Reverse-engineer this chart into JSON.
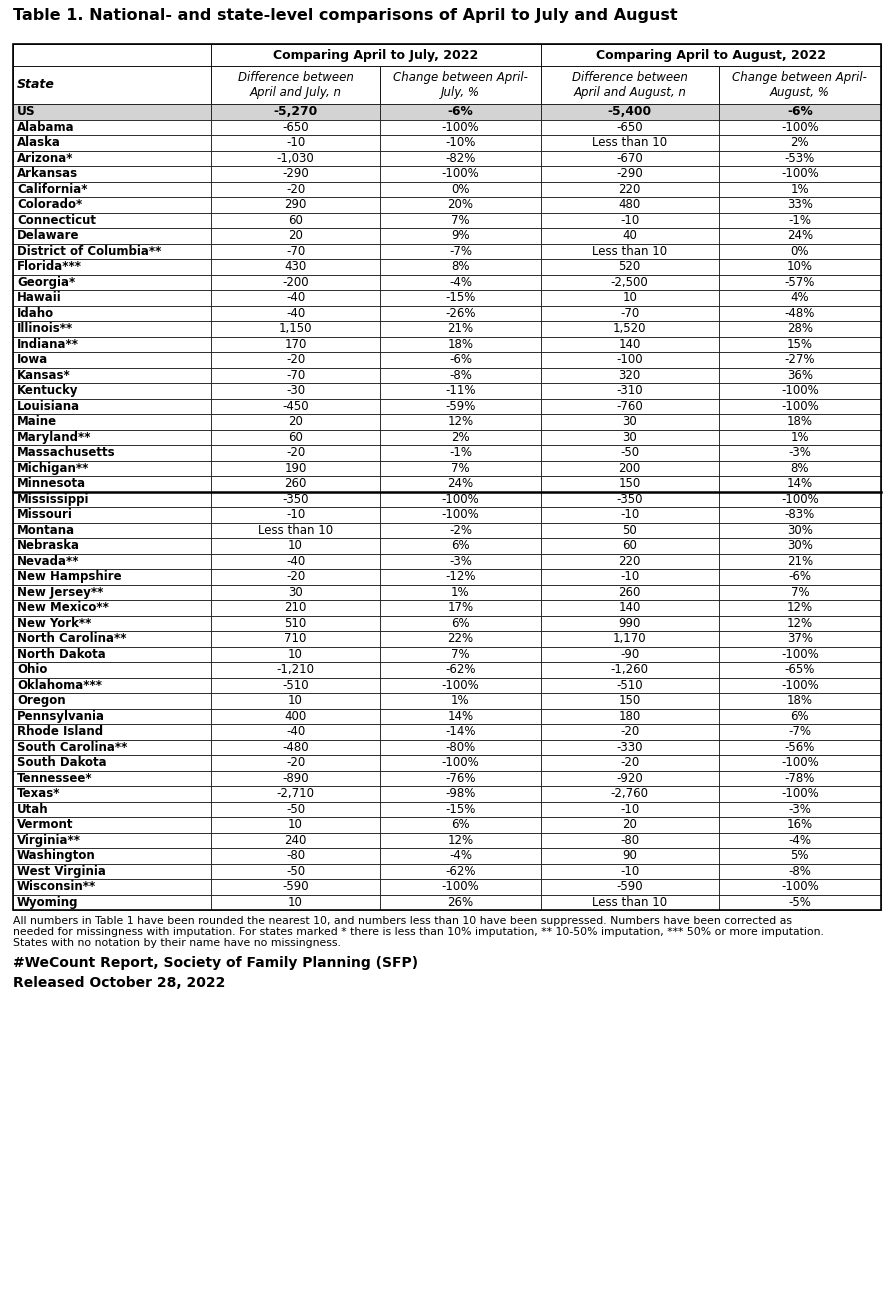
{
  "title": "Table 1. National- and state-level comparisons of April to July and August",
  "header1": "Comparing April to July, 2022",
  "header2": "Comparing April to August, 2022",
  "col_headers": [
    "State",
    "Difference between\nApril and July, n",
    "Change between April-\nJuly, %",
    "Difference between\nApril and August, n",
    "Change between April-\nAugust, %"
  ],
  "rows": [
    [
      "US",
      "-5,270",
      "-6%",
      "-5,400",
      "-6%",
      "us"
    ],
    [
      "Alabama",
      "-650",
      "-100%",
      "-650",
      "-100%",
      "normal"
    ],
    [
      "Alaska",
      "-10",
      "-10%",
      "Less than 10",
      "2%",
      "normal"
    ],
    [
      "Arizona*",
      "-1,030",
      "-82%",
      "-670",
      "-53%",
      "normal"
    ],
    [
      "Arkansas",
      "-290",
      "-100%",
      "-290",
      "-100%",
      "normal"
    ],
    [
      "California*",
      "-20",
      "0%",
      "220",
      "1%",
      "normal"
    ],
    [
      "Colorado*",
      "290",
      "20%",
      "480",
      "33%",
      "normal"
    ],
    [
      "Connecticut",
      "60",
      "7%",
      "-10",
      "-1%",
      "normal"
    ],
    [
      "Delaware",
      "20",
      "9%",
      "40",
      "24%",
      "normal"
    ],
    [
      "District of Columbia**",
      "-70",
      "-7%",
      "Less than 10",
      "0%",
      "normal"
    ],
    [
      "Florida***",
      "430",
      "8%",
      "520",
      "10%",
      "normal"
    ],
    [
      "Georgia*",
      "-200",
      "-4%",
      "-2,500",
      "-57%",
      "normal"
    ],
    [
      "Hawaii",
      "-40",
      "-15%",
      "10",
      "4%",
      "normal"
    ],
    [
      "Idaho",
      "-40",
      "-26%",
      "-70",
      "-48%",
      "normal"
    ],
    [
      "Illinois**",
      "1,150",
      "21%",
      "1,520",
      "28%",
      "normal"
    ],
    [
      "Indiana**",
      "170",
      "18%",
      "140",
      "15%",
      "normal"
    ],
    [
      "Iowa",
      "-20",
      "-6%",
      "-100",
      "-27%",
      "normal"
    ],
    [
      "Kansas*",
      "-70",
      "-8%",
      "320",
      "36%",
      "normal"
    ],
    [
      "Kentucky",
      "-30",
      "-11%",
      "-310",
      "-100%",
      "normal"
    ],
    [
      "Louisiana",
      "-450",
      "-59%",
      "-760",
      "-100%",
      "normal"
    ],
    [
      "Maine",
      "20",
      "12%",
      "30",
      "18%",
      "normal"
    ],
    [
      "Maryland**",
      "60",
      "2%",
      "30",
      "1%",
      "normal"
    ],
    [
      "Massachusetts",
      "-20",
      "-1%",
      "-50",
      "-3%",
      "normal"
    ],
    [
      "Michigan**",
      "190",
      "7%",
      "200",
      "8%",
      "normal"
    ],
    [
      "Minnesota",
      "260",
      "24%",
      "150",
      "14%",
      "normal"
    ],
    [
      "Mississippi",
      "-350",
      "-100%",
      "-350",
      "-100%",
      "gap"
    ],
    [
      "Missouri",
      "-10",
      "-100%",
      "-10",
      "-83%",
      "normal"
    ],
    [
      "Montana",
      "Less than 10",
      "-2%",
      "50",
      "30%",
      "normal"
    ],
    [
      "Nebraska",
      "10",
      "6%",
      "60",
      "30%",
      "normal"
    ],
    [
      "Nevada**",
      "-40",
      "-3%",
      "220",
      "21%",
      "normal"
    ],
    [
      "New Hampshire",
      "-20",
      "-12%",
      "-10",
      "-6%",
      "normal"
    ],
    [
      "New Jersey**",
      "30",
      "1%",
      "260",
      "7%",
      "normal"
    ],
    [
      "New Mexico**",
      "210",
      "17%",
      "140",
      "12%",
      "normal"
    ],
    [
      "New York**",
      "510",
      "6%",
      "990",
      "12%",
      "normal"
    ],
    [
      "North Carolina**",
      "710",
      "22%",
      "1,170",
      "37%",
      "normal"
    ],
    [
      "North Dakota",
      "10",
      "7%",
      "-90",
      "-100%",
      "normal"
    ],
    [
      "Ohio",
      "-1,210",
      "-62%",
      "-1,260",
      "-65%",
      "normal"
    ],
    [
      "Oklahoma***",
      "-510",
      "-100%",
      "-510",
      "-100%",
      "normal"
    ],
    [
      "Oregon",
      "10",
      "1%",
      "150",
      "18%",
      "normal"
    ],
    [
      "Pennsylvania",
      "400",
      "14%",
      "180",
      "6%",
      "normal"
    ],
    [
      "Rhode Island",
      "-40",
      "-14%",
      "-20",
      "-7%",
      "normal"
    ],
    [
      "South Carolina**",
      "-480",
      "-80%",
      "-330",
      "-56%",
      "normal"
    ],
    [
      "South Dakota",
      "-20",
      "-100%",
      "-20",
      "-100%",
      "normal"
    ],
    [
      "Tennessee*",
      "-890",
      "-76%",
      "-920",
      "-78%",
      "normal"
    ],
    [
      "Texas*",
      "-2,710",
      "-98%",
      "-2,760",
      "-100%",
      "normal"
    ],
    [
      "Utah",
      "-50",
      "-15%",
      "-10",
      "-3%",
      "normal"
    ],
    [
      "Vermont",
      "10",
      "6%",
      "20",
      "16%",
      "normal"
    ],
    [
      "Virginia**",
      "240",
      "12%",
      "-80",
      "-4%",
      "normal"
    ],
    [
      "Washington",
      "-80",
      "-4%",
      "90",
      "5%",
      "normal"
    ],
    [
      "West Virginia",
      "-50",
      "-62%",
      "-10",
      "-8%",
      "normal"
    ],
    [
      "Wisconsin**",
      "-590",
      "-100%",
      "-590",
      "-100%",
      "normal"
    ],
    [
      "Wyoming",
      "10",
      "26%",
      "Less than 10",
      "-5%",
      "normal"
    ]
  ],
  "footnote1": "All numbers in Table 1 have been rounded the nearest 10, and numbers less than 10 have been suppressed. Numbers have been corrected as",
  "footnote2": "needed for missingness with imputation. For states marked * there is less than 10% imputation, ** 10-50% imputation, *** 50% or more imputation.",
  "footnote3": "States with no notation by their name have no missingness.",
  "source": "#WeCount Report, Society of Family Planning (SFP)",
  "released": "Released October 28, 2022",
  "us_row_bg": "#D3D3D3",
  "title_fontsize": 11.5,
  "cell_fontsize": 8.5,
  "header_fontsize": 9,
  "footnote_fontsize": 7.8,
  "source_fontsize": 10
}
